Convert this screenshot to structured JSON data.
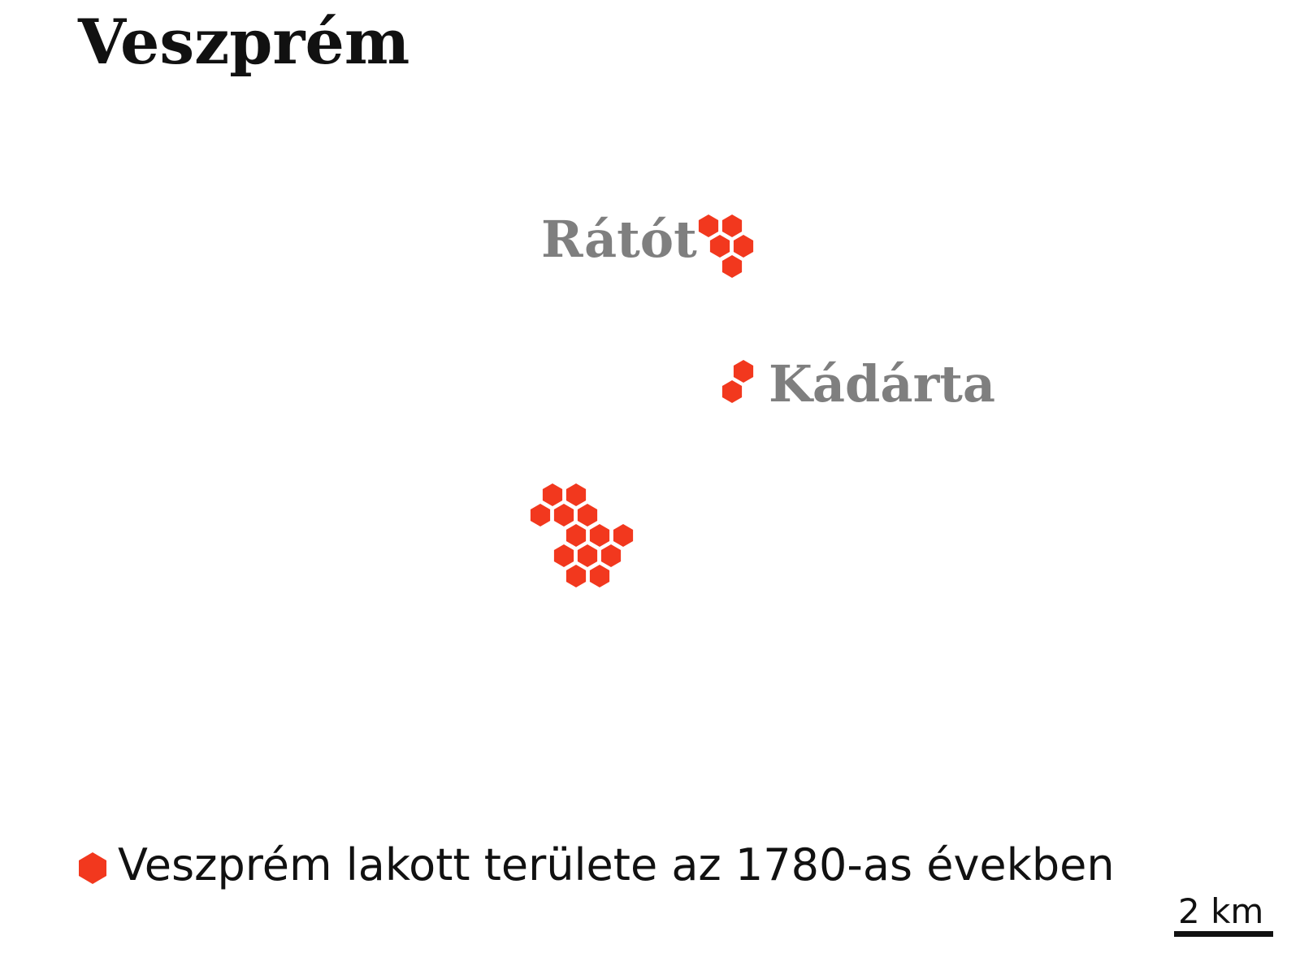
{
  "title": "Veszprém",
  "places": [
    {
      "name": "Rátót"
    },
    {
      "name": "Kádárta"
    }
  ],
  "legend": {
    "label": "Veszprém lakott területe az 1780-as években",
    "marker_color": "#f2381e"
  },
  "scale_bar": {
    "label": "2 km"
  },
  "colors": {
    "settlement": "#f2381e",
    "place_label": "#7f7f7f",
    "title": "#111111"
  }
}
